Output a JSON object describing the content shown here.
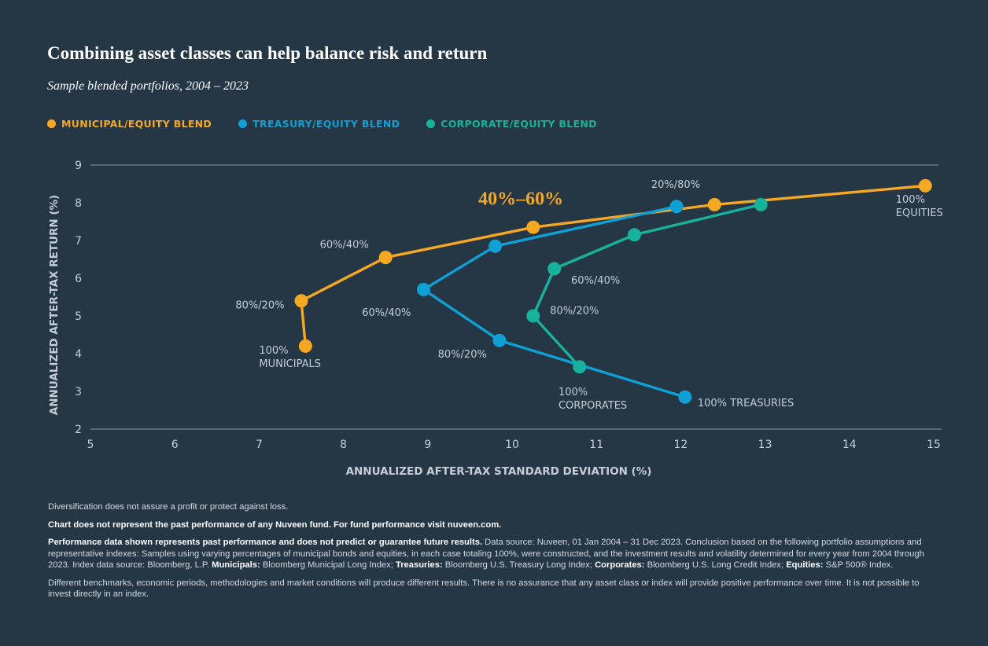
{
  "title": "Combining asset classes can help balance risk and return",
  "subtitle": "Sample blended portfolios, 2004 – 2023",
  "colors": {
    "background": "#253645",
    "municipal": "#f7a823",
    "treasury": "#0fa0d6",
    "corporate": "#17b29b",
    "axis_text": "#c5ced6",
    "grid": "#8797a5"
  },
  "legend": [
    {
      "label": "MUNICIPAL/EQUITY BLEND",
      "color": "#f7a823"
    },
    {
      "label": "TREASURY/EQUITY BLEND",
      "color": "#0fa0d6"
    },
    {
      "label": "CORPORATE/EQUITY BLEND",
      "color": "#17b29b"
    }
  ],
  "chart_data": {
    "type": "line",
    "title": "Combining asset classes can help balance risk and return",
    "xlabel": "ANNUALIZED AFTER-TAX STANDARD DEVIATION (%)",
    "ylabel": "ANNUALIZED AFTER-TAX RETURN (%)",
    "xlim": [
      5,
      15
    ],
    "ylim": [
      2,
      9
    ],
    "xticks": [
      5,
      6,
      7,
      8,
      9,
      10,
      11,
      12,
      13,
      14,
      15
    ],
    "yticks": [
      2,
      3,
      4,
      5,
      6,
      7,
      8,
      9
    ],
    "series": [
      {
        "name": "MUNICIPAL/EQUITY BLEND",
        "color": "#f7a823",
        "x": [
          7.55,
          7.5,
          8.5,
          10.25,
          12.4,
          14.9
        ],
        "y": [
          4.2,
          5.4,
          6.55,
          7.35,
          7.95,
          8.45
        ]
      },
      {
        "name": "TREASURY/EQUITY BLEND",
        "color": "#0fa0d6",
        "x": [
          12.05,
          9.85,
          8.95,
          9.8,
          11.95
        ],
        "y": [
          2.85,
          4.35,
          5.7,
          6.85,
          7.9
        ]
      },
      {
        "name": "CORPORATE/EQUITY BLEND",
        "color": "#17b29b",
        "x": [
          10.8,
          10.25,
          10.5,
          11.45,
          12.95
        ],
        "y": [
          3.65,
          5.0,
          6.25,
          7.15,
          7.95
        ]
      }
    ],
    "annotations": [
      {
        "text": "100%",
        "text2": "MUNICIPALS",
        "x": 7.0,
        "y": 4.0,
        "anchor": "start"
      },
      {
        "text": "80%/20%",
        "x": 7.3,
        "y": 5.2,
        "anchor": "end"
      },
      {
        "text": "60%/40%",
        "x": 8.3,
        "y": 6.8,
        "anchor": "end"
      },
      {
        "text": "40%–60%",
        "x": 9.6,
        "y": 7.95,
        "anchor": "start",
        "highlight": true
      },
      {
        "text": "20%/80%",
        "x": 11.65,
        "y": 8.4,
        "anchor": "start"
      },
      {
        "text": "100%",
        "text2": "EQUITIES",
        "x": 14.55,
        "y": 8.0,
        "anchor": "start"
      },
      {
        "text": "60%/40%",
        "x": 8.8,
        "y": 5.0,
        "anchor": "end"
      },
      {
        "text": "80%/20%",
        "x": 9.7,
        "y": 3.9,
        "anchor": "end"
      },
      {
        "text": "100% TREASURIES",
        "x": 12.2,
        "y": 2.6,
        "anchor": "start"
      },
      {
        "text": "60%/40%",
        "x": 10.7,
        "y": 5.85,
        "anchor": "start"
      },
      {
        "text": "80%/20%",
        "x": 10.45,
        "y": 5.05,
        "anchor": "start"
      },
      {
        "text": "100%",
        "text2": "CORPORATES",
        "x": 10.55,
        "y": 2.9,
        "anchor": "start"
      }
    ]
  },
  "footnotes": {
    "p1": "Diversification does not assure a profit or protect against loss.",
    "p2": "Chart does not represent the past performance of any Nuveen fund. For fund performance visit nuveen.com.",
    "p3_bold": "Performance data shown represents past performance and does not predict or guarantee future results.",
    "p3_text": "Data source: Nuveen, 01 Jan 2004 – 31 Dec 2023. Conclusion based on the following portfolio assumptions and representative indexes: Samples using varying percentages of municipal bonds and equities, in each case totaling 100%, were constructed, and the investment results and volatility determined for every year from 2004 through 2023. Index data source: Bloomberg, L.P.",
    "muni_label": "Municipals:",
    "muni_text": "Bloomberg Municipal Long Index;",
    "treas_label": "Treasuries:",
    "treas_text": "Bloomberg U.S. Treasury Long Index;",
    "corp_label": "Corporates:",
    "corp_text": "Bloomberg U.S. Long Credit Index;",
    "eq_label": "Equities:",
    "eq_text": "S&P 500® Index.",
    "p4": "Different benchmarks, economic periods, methodologies and market conditions will produce different results. There is no assurance that any asset class or index will provide positive performance over time. It is not possible to invest directly in an index."
  }
}
